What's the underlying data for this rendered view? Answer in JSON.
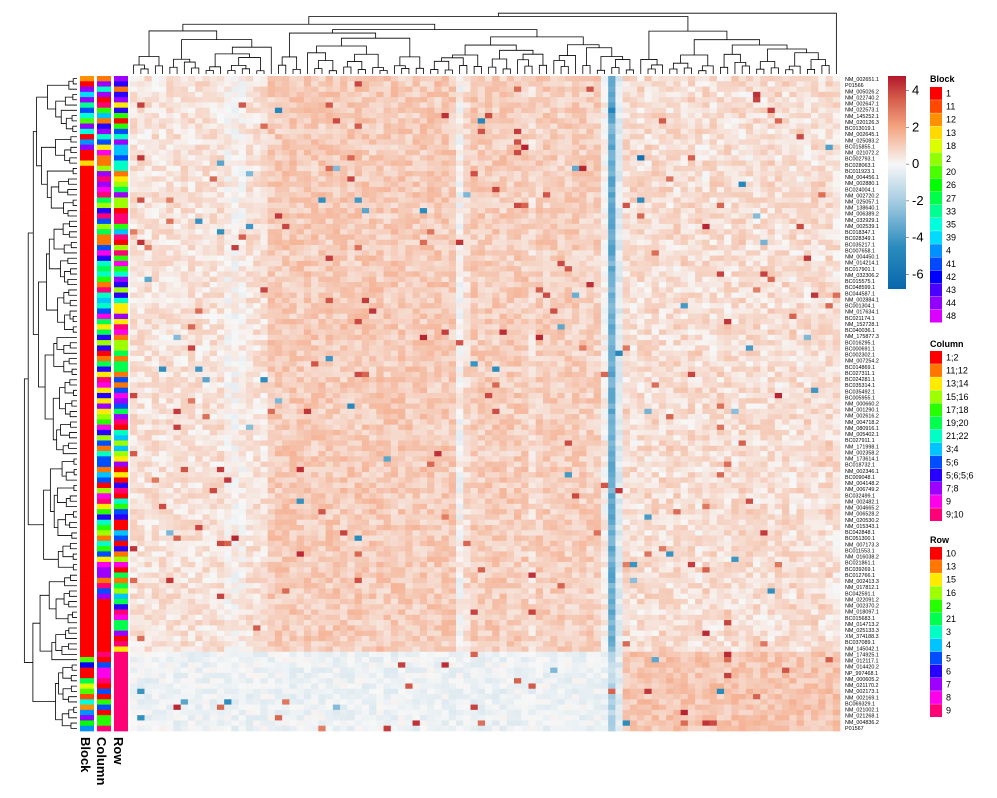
{
  "chart_data": {
    "type": "heatmap",
    "title": "",
    "n_rows": 124,
    "n_cols": 98,
    "row_labels": [
      "NM_002651.1",
      "P01566",
      "NM_005026.2",
      "NM_022740.2",
      "NM_002647.1",
      "NM_022573.1",
      "NM_145252.1",
      "NM_020126.3",
      "BC013019.1",
      "NM_002645.1",
      "NM_025083.2",
      "BC015855.1",
      "NM_021072.2",
      "BC002793.1",
      "BC028063.1",
      "BC011923.1",
      "NM_004456.1",
      "NM_002880.1",
      "BC024004.1",
      "NM_002720.2",
      "NM_025057.1",
      "NM_138640.1",
      "NM_006389.2",
      "NM_032929.1",
      "NM_002539.1",
      "BC018347.1",
      "BC028349.1",
      "BC035217.1",
      "BC007658.1",
      "NM_004450.1",
      "NM_014214.1",
      "BC017901.1",
      "NM_032306.2",
      "BC015575.1",
      "BC048599.1",
      "BC044587.1",
      "NM_002884.1",
      "BC001304.1",
      "NM_017634.1",
      "BC021174.1",
      "NM_152728.1",
      "BC040036.1",
      "NM_175877.3",
      "BC016295.1",
      "BC000691.1",
      "BC002302.1",
      "NM_007254.2",
      "BC014869.1",
      "BC027311.1",
      "BC024281.1",
      "BC035314.1",
      "BC035492.1",
      "BC005955.1",
      "NM_000660.2",
      "NM_001290.1",
      "NM_002616.2",
      "NM_004718.2",
      "NM_080916.1",
      "NM_005402.1",
      "BC027911.1",
      "NM_171998.1",
      "NM_002358.2",
      "NM_173614.1",
      "BC018732.1",
      "NM_002346.1",
      "BC009048.1",
      "NM_004148.2",
      "NM_006749.2",
      "BC032499.1",
      "NM_002482.1",
      "NM_004665.2",
      "NM_006528.2",
      "NM_020530.2",
      "NM_015343.1",
      "BC042848.1",
      "BC051300.1",
      "NM_007173.3",
      "BC011553.1",
      "NM_016038.2",
      "BC021861.1",
      "BC039269.1",
      "BC012766.1",
      "NM_002413.3",
      "NM_017812.1",
      "BC042591.1",
      "NM_022091.2",
      "NM_002370.2",
      "NM_018097.1",
      "BC015683.1",
      "NM_014713.2",
      "NM_025133.3",
      "XM_374188.3",
      "BC037089.1",
      "NM_145042.1",
      "NM_174925.1",
      "NM_012117.1",
      "NM_014420.2",
      "NP_997468.1",
      "NM_000605.2",
      "NM_021170.2",
      "NM_002173.1",
      "NM_002169.1",
      "BC069329.1",
      "NM_021002.1",
      "NM_021268.1",
      "NM_004836.2",
      "P01567"
    ],
    "color_scale": {
      "ticks": [
        4,
        2,
        0,
        -2,
        -4,
        -6
      ],
      "min": -6.8,
      "max": 4.8,
      "stops": [
        {
          "value": -6.8,
          "color": "#0868ac"
        },
        {
          "value": -4.5,
          "color": "#2b8cbe"
        },
        {
          "value": -2.0,
          "color": "#a6cde2"
        },
        {
          "value": 0.0,
          "color": "#f7f7f7"
        },
        {
          "value": 2.0,
          "color": "#f4a582"
        },
        {
          "value": 3.5,
          "color": "#d6604d"
        },
        {
          "value": 4.8,
          "color": "#b2182b"
        }
      ]
    },
    "annotations": [
      {
        "name": "Block",
        "levels": [
          "1",
          "11",
          "12",
          "13",
          "18",
          "2",
          "20",
          "26",
          "27",
          "33",
          "35",
          "39",
          "4",
          "41",
          "42",
          "43",
          "44",
          "48"
        ],
        "colors": [
          "#ff0000",
          "#ff4800",
          "#ff9100",
          "#ffda00",
          "#dbff00",
          "#92ff00",
          "#49ff00",
          "#00ff00",
          "#00ff49",
          "#00ff92",
          "#00ffdb",
          "#00dbff",
          "#0092ff",
          "#0049ff",
          "#0000ff",
          "#4900ff",
          "#9200ff",
          "#db00ff"
        ]
      },
      {
        "name": "Column",
        "levels": [
          "1;2",
          "11;12",
          "13;14",
          "15;16",
          "17;18",
          "19;20",
          "21;22",
          "3;4",
          "5;6",
          "5;6;5;6",
          "7;8",
          "9",
          "9;10"
        ],
        "colors": [
          "#ff0000",
          "#ff7600",
          "#ffeb00",
          "#9dff00",
          "#27ff00",
          "#00ff4e",
          "#00ffc4",
          "#00c4ff",
          "#004eff",
          "#2700ff",
          "#9d00ff",
          "#ff00eb",
          "#ff0076"
        ]
      },
      {
        "name": "Row",
        "levels": [
          "10",
          "13",
          "15",
          "16",
          "2",
          "21",
          "3",
          "4",
          "5",
          "6",
          "7",
          "8",
          "9"
        ],
        "colors": [
          "#ff0000",
          "#ff7600",
          "#ffeb00",
          "#9dff00",
          "#27ff00",
          "#00ff4e",
          "#00ffc4",
          "#00c4ff",
          "#004eff",
          "#2700ff",
          "#9d00ff",
          "#ff00eb",
          "#ff0076"
        ]
      }
    ],
    "annotation_axis_labels": [
      "Block",
      "Column",
      "Row"
    ],
    "legend_titles": [
      "Block",
      "Column",
      "Row"
    ],
    "legend_position": "right",
    "dendrograms": [
      "top",
      "left"
    ],
    "grid": false
  }
}
